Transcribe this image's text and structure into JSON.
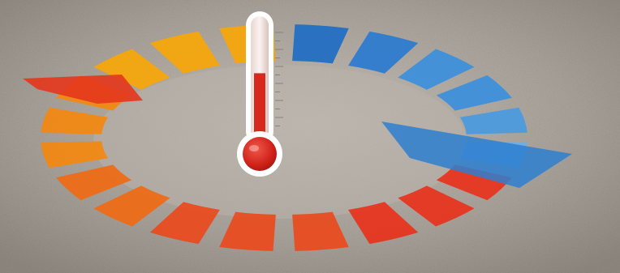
{
  "scene": {
    "subject": "thermometer-over-temperature-cycle-ring",
    "thermometer": {
      "level": 0.6,
      "scale_ticks": 12,
      "tube_color": "#f4e7e3",
      "liquid_color": "#d62a1f",
      "bulb_color": "#cf2219"
    },
    "ring": {
      "segment_count": 20,
      "cool_palette": [
        "#1e6cc4",
        "#2a7bd0",
        "#3b8fdc",
        "#4a9ae0",
        "#6aaee8"
      ],
      "warm_palette": [
        "#e8321c",
        "#ea4a1c",
        "#ef6a14",
        "#f3880f",
        "#f7a608"
      ]
    },
    "background": {
      "ground_color": "#a39d94",
      "ground_light": "#c4beb6"
    }
  }
}
